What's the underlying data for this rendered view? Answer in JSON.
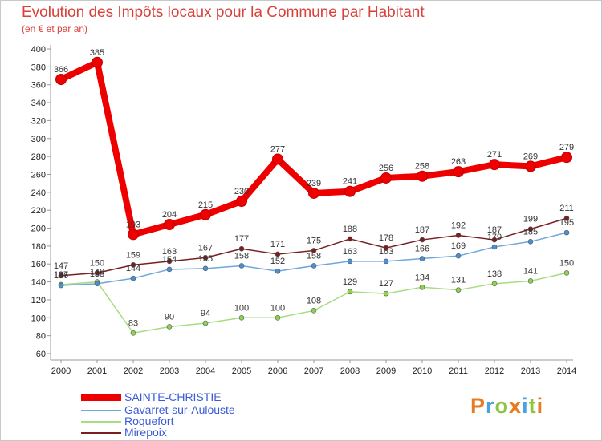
{
  "title": "Evolution des Impôts locaux pour la Commune par Habitant",
  "subtitle": "(en € et par an)",
  "logo": {
    "text": "Proxiti",
    "colors": [
      "#e87a20",
      "#4aa3df",
      "#8cc63f",
      "#e87a20",
      "#4aa3df",
      "#8cc63f",
      "#e87a20"
    ]
  },
  "chart_data": {
    "type": "line",
    "x": [
      "2000",
      "2001",
      "2002",
      "2003",
      "2004",
      "2005",
      "2006",
      "2007",
      "2008",
      "2009",
      "2010",
      "2011",
      "2012",
      "2013",
      "2014"
    ],
    "ylim": [
      60,
      400
    ],
    "yticks": [
      60,
      80,
      100,
      120,
      140,
      160,
      180,
      200,
      220,
      240,
      260,
      280,
      300,
      320,
      340,
      360,
      380,
      400
    ],
    "grid": false,
    "legend_position": "bottom-left",
    "series": [
      {
        "name": "SAINTE-CHRISTIE",
        "color": "#ee0000",
        "stroke": "#ee0000",
        "emphasis": true,
        "values": [
          366,
          385,
          193,
          204,
          215,
          230,
          277,
          239,
          241,
          256,
          258,
          263,
          271,
          269,
          279
        ],
        "labels": [
          "366",
          "385",
          "193",
          "204",
          "215",
          "230",
          "277",
          "239",
          "241",
          "256",
          "258",
          "263",
          "271",
          "269",
          "279"
        ]
      },
      {
        "name": "Gavarret-sur-Aulouste",
        "color": "#4a90d6",
        "stroke": "#6fa8dc",
        "values": [
          136,
          138,
          144,
          154,
          155,
          158,
          152,
          158,
          163,
          163,
          166,
          169,
          179,
          185,
          195
        ],
        "labels": [
          "136",
          "138",
          "144",
          "154",
          "155",
          "158",
          "152",
          "158",
          "163",
          "163",
          "166",
          "169",
          "179",
          "185",
          "195"
        ]
      },
      {
        "name": "Roquefort",
        "color": "#8cd64f",
        "stroke": "#a8dc80",
        "values": [
          137,
          140,
          83,
          90,
          94,
          100,
          100,
          108,
          129,
          127,
          134,
          131,
          138,
          141,
          150
        ],
        "labels": [
          "137",
          "140",
          "83",
          "90",
          "94",
          "100",
          "100",
          "108",
          "129",
          "127",
          "134",
          "131",
          "138",
          "141",
          "150"
        ]
      },
      {
        "name": "Mirepoix",
        "color": "#7a1f1f",
        "stroke": "#7a1f1f",
        "values": [
          147,
          150,
          159,
          163,
          167,
          177,
          171,
          175,
          188,
          178,
          187,
          192,
          187,
          199,
          211
        ],
        "labels": [
          "147",
          "150",
          "159",
          "163",
          "167",
          "177",
          "171",
          "175",
          "188",
          "178",
          "187",
          "192",
          "187",
          "199",
          "211"
        ]
      }
    ]
  }
}
